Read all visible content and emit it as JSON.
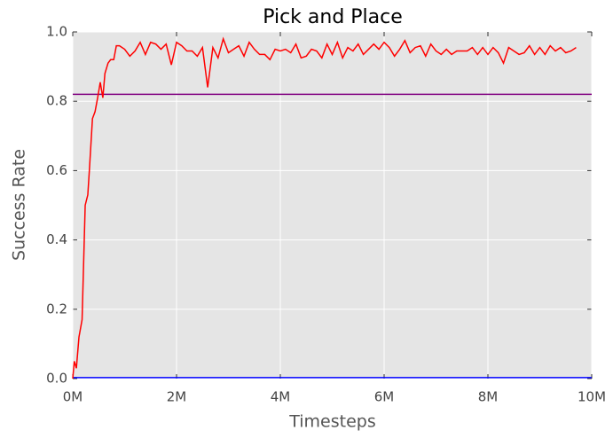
{
  "chart_data": {
    "type": "line",
    "title": "Pick and Place",
    "x_label": "Timesteps",
    "y_label": "Success Rate",
    "x": [
      0,
      30000,
      70000,
      120000,
      180000,
      240000,
      290000,
      320000,
      380000,
      430000,
      480000,
      530000,
      580000,
      620000,
      680000,
      730000,
      790000,
      840000,
      900000,
      1000000,
      1100000,
      1200000,
      1300000,
      1400000,
      1500000,
      1600000,
      1700000,
      1800000,
      1900000,
      2000000,
      2100000,
      2200000,
      2300000,
      2400000,
      2500000,
      2600000,
      2700000,
      2800000,
      2900000,
      3000000,
      3100000,
      3200000,
      3300000,
      3400000,
      3500000,
      3600000,
      3700000,
      3800000,
      3900000,
      4000000,
      4100000,
      4200000,
      4300000,
      4400000,
      4500000,
      4600000,
      4700000,
      4800000,
      4900000,
      5000000,
      5100000,
      5200000,
      5300000,
      5400000,
      5500000,
      5600000,
      5700000,
      5800000,
      5900000,
      6000000,
      6100000,
      6200000,
      6300000,
      6400000,
      6500000,
      6600000,
      6700000,
      6800000,
      6900000,
      7000000,
      7100000,
      7200000,
      7300000,
      7400000,
      7500000,
      7600000,
      7700000,
      7800000,
      7900000,
      8000000,
      8100000,
      8200000,
      8300000,
      8400000,
      8500000,
      8600000,
      8700000,
      8800000,
      8900000,
      9000000,
      9100000,
      9200000,
      9300000,
      9400000,
      9500000,
      9600000,
      9700000
    ],
    "series": [
      {
        "color": "#ff0000",
        "values": [
          0.0,
          0.05,
          0.03,
          0.12,
          0.17,
          0.5,
          0.53,
          0.6,
          0.75,
          0.77,
          0.81,
          0.855,
          0.81,
          0.88,
          0.91,
          0.92,
          0.92,
          0.96,
          0.96,
          0.95,
          0.93,
          0.945,
          0.97,
          0.935,
          0.97,
          0.965,
          0.95,
          0.965,
          0.905,
          0.97,
          0.96,
          0.945,
          0.945,
          0.93,
          0.955,
          0.84,
          0.955,
          0.925,
          0.98,
          0.94,
          0.95,
          0.96,
          0.93,
          0.97,
          0.95,
          0.935,
          0.935,
          0.92,
          0.95,
          0.945,
          0.95,
          0.94,
          0.965,
          0.925,
          0.93,
          0.95,
          0.945,
          0.925,
          0.965,
          0.935,
          0.97,
          0.925,
          0.955,
          0.945,
          0.965,
          0.935,
          0.95,
          0.965,
          0.95,
          0.97,
          0.955,
          0.93,
          0.95,
          0.975,
          0.94,
          0.955,
          0.96,
          0.93,
          0.965,
          0.945,
          0.935,
          0.95,
          0.935,
          0.945,
          0.945,
          0.945,
          0.955,
          0.935,
          0.955,
          0.935,
          0.955,
          0.94,
          0.91,
          0.955,
          0.945,
          0.935,
          0.94,
          0.96,
          0.935,
          0.955,
          0.935,
          0.96,
          0.945,
          0.955,
          0.94,
          0.945,
          0.955
        ]
      }
    ],
    "hlines": [
      {
        "value": 0.82,
        "color": "#800080"
      },
      {
        "value": 0.003,
        "color": "#0000ff"
      }
    ],
    "xlim": [
      0,
      10000000
    ],
    "xticks": [
      {
        "value": 0,
        "label": "0M"
      },
      {
        "value": 2000000,
        "label": "2M"
      },
      {
        "value": 4000000,
        "label": "4M"
      },
      {
        "value": 6000000,
        "label": "6M"
      },
      {
        "value": 8000000,
        "label": "8M"
      },
      {
        "value": 10000000,
        "label": "10M"
      }
    ],
    "ylim": [
      0,
      1
    ],
    "yticks": [
      {
        "value": 0,
        "label": "0.0"
      },
      0.2,
      0.4,
      0.6,
      0.8,
      {
        "value": 1,
        "label": "1.0"
      }
    ],
    "grid": true
  }
}
